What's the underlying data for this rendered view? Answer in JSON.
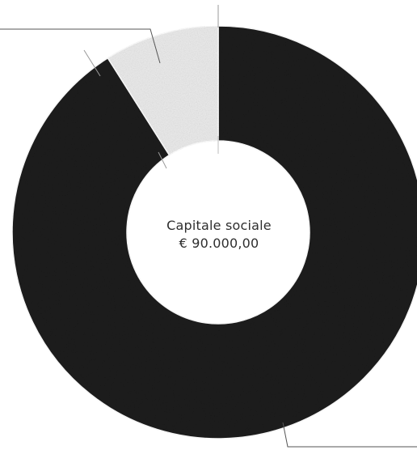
{
  "chart_data": {
    "type": "pie",
    "title": "",
    "donut": true,
    "center_text": [
      "Capitale sociale",
      "€ 90.000,00"
    ],
    "slices": [
      {
        "value": 91,
        "color": "#1c1c1c"
      },
      {
        "value": 9,
        "color": "#ececec"
      }
    ],
    "start_angle_deg": 0,
    "direction": "clockwise",
    "legend": "none",
    "leader_lines": true
  }
}
